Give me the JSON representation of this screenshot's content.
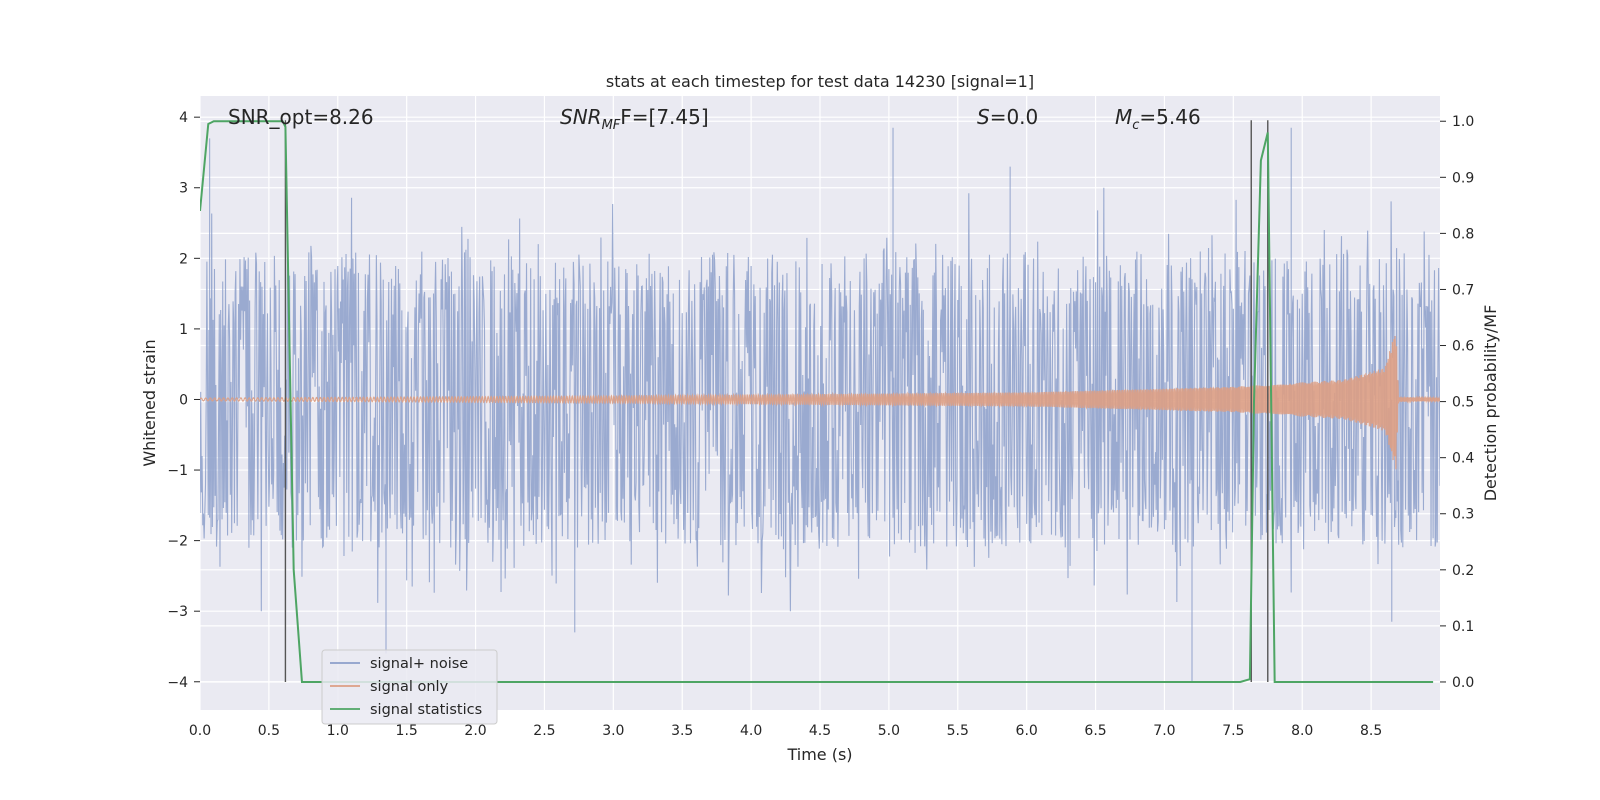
{
  "chart_data": {
    "type": "line",
    "title": "stats at each timestep for test data 14230 [signal=1]",
    "xlabel": "Time (s)",
    "ylabel": "Whitened strain",
    "ylabel_right": "Detection probability/MF",
    "xlim": [
      0.0,
      9.0
    ],
    "ylim": [
      -4.4,
      4.3
    ],
    "ylim_right": [
      -0.05,
      1.045
    ],
    "x_ticks": [
      "0.0",
      "0.5",
      "1.0",
      "1.5",
      "2.0",
      "2.5",
      "3.0",
      "3.5",
      "4.0",
      "4.5",
      "5.0",
      "5.5",
      "6.0",
      "6.5",
      "7.0",
      "7.5",
      "8.0",
      "8.5"
    ],
    "y_ticks": [
      "−4",
      "−3",
      "−2",
      "−1",
      "0",
      "1",
      "2",
      "3",
      "4"
    ],
    "y_ticks_right": [
      "0.0",
      "0.1",
      "0.2",
      "0.3",
      "0.4",
      "0.5",
      "0.6",
      "0.7",
      "0.8",
      "0.9",
      "1.0"
    ],
    "grid": true,
    "legend_position": "lower-left",
    "annotations": {
      "snr_opt": "SNR_opt=8.26",
      "snr_mf_main": "SNR",
      "snr_mf_sub": "MF",
      "snr_mf_value": "F=[7.45]",
      "s_var": "S",
      "s_value": "=0.0",
      "mc_var": "M",
      "mc_sub": "c",
      "mc_value": "=5.46"
    },
    "series": [
      {
        "name": "signal+ noise",
        "color": "#8c9fca",
        "style": "dense noise, mostly within ±2.5 with peaks near ±3.5",
        "approx_amplitude": 2.2,
        "peaks": [
          {
            "x": 0.07,
            "y": 3.7
          },
          {
            "x": 1.35,
            "y": -3.6
          },
          {
            "x": 2.72,
            "y": -3.3
          },
          {
            "x": 5.03,
            "y": 3.85
          },
          {
            "x": 5.88,
            "y": 3.3
          },
          {
            "x": 7.2,
            "y": -4.0
          },
          {
            "x": 7.92,
            "y": 3.85
          },
          {
            "x": 8.65,
            "y": -3.15
          }
        ]
      },
      {
        "name": "signal only",
        "color": "#dd9f84",
        "style": "chirp growing in amplitude, merger near t=8.68",
        "envelope": [
          [
            0.0,
            0.02
          ],
          [
            3.0,
            0.05
          ],
          [
            6.0,
            0.1
          ],
          [
            7.5,
            0.18
          ],
          [
            8.3,
            0.28
          ],
          [
            8.6,
            0.45
          ],
          [
            8.68,
            1.0
          ],
          [
            8.7,
            0.03
          ],
          [
            9.0,
            0.02
          ]
        ]
      },
      {
        "name": "signal statistics",
        "color": "#4ea564",
        "axis": "right",
        "x": [
          0.0,
          0.06,
          0.1,
          0.5,
          0.6,
          0.62,
          0.68,
          0.74,
          0.78,
          7.55,
          7.62,
          7.65,
          7.7,
          7.75,
          7.8,
          7.85,
          8.95
        ],
        "y": [
          0.84,
          0.995,
          1.0,
          1.0,
          1.0,
          0.99,
          0.2,
          0.0,
          0.0,
          0.0,
          0.005,
          0.5,
          0.93,
          0.98,
          0.0,
          0.0,
          0.0
        ]
      }
    ],
    "vertical_lines": [
      0.62,
      7.63,
      7.75
    ]
  }
}
